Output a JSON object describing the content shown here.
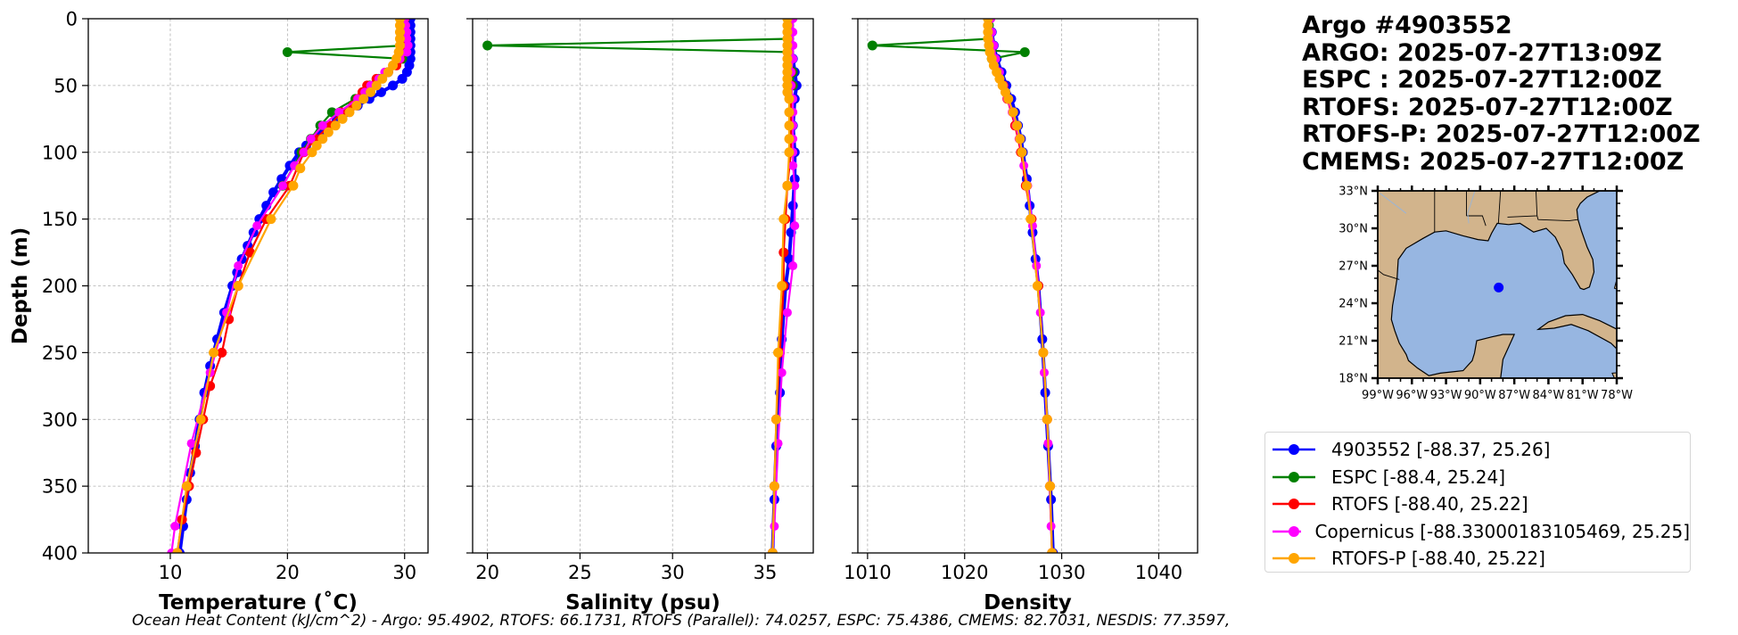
{
  "colors": {
    "argo": "#0000ff",
    "espc": "#008000",
    "rtofs": "#ff0000",
    "copernicus": "#ff00ff",
    "rtofs_p": "#ffa500",
    "land": "#d2b48c",
    "ocean": "#97b6e1",
    "grid": "#b0b0b0"
  },
  "title_lines": [
    "Argo #4903552",
    "ARGO: 2025-07-27T13:09Z",
    "ESPC : 2025-07-27T12:00Z",
    "RTOFS: 2025-07-27T12:00Z",
    "RTOFS-P: 2025-07-27T12:00Z",
    "CMEMS: 2025-07-27T12:00Z"
  ],
  "legend": [
    {
      "key": "argo",
      "label": "4903552 [-88.37, 25.26]"
    },
    {
      "key": "espc",
      "label": "ESPC [-88.4, 25.24]"
    },
    {
      "key": "rtofs",
      "label": "RTOFS [-88.40, 25.22]"
    },
    {
      "key": "copernicus",
      "label": "Copernicus [-88.33000183105469, 25.25]"
    },
    {
      "key": "rtofs_p",
      "label": "RTOFS-P [-88.40, 25.22]"
    }
  ],
  "footer_text": "Ocean Heat Content (kJ/cm^2) - Argo: 95.4902,  RTOFS: 66.1731,  RTOFS (Parallel): 74.0257,  ESPC: 75.4386,  CMEMS: 82.7031,  NESDIS: 77.3597,",
  "map": {
    "lat_ticks": [
      "33°N",
      "30°N",
      "27°N",
      "24°N",
      "21°N",
      "18°N"
    ],
    "lat_values": [
      33,
      30,
      27,
      24,
      21,
      18
    ],
    "lon_ticks": [
      "99°W",
      "96°W",
      "93°W",
      "90°W",
      "87°W",
      "84°W",
      "81°W",
      "78°W"
    ],
    "lon_values": [
      -99,
      -96,
      -93,
      -90,
      -87,
      -84,
      -81,
      -78
    ],
    "lon_range": [
      -99,
      -78
    ],
    "lat_range": [
      18,
      33
    ],
    "float_position": [
      -88.37,
      25.26
    ]
  },
  "chart_data": [
    {
      "type": "line",
      "title": "",
      "xlabel": "Temperature (˚C)",
      "ylabel": "Depth (m)",
      "xlim": [
        3,
        32
      ],
      "ylim": [
        400,
        0
      ],
      "xticks": [
        10,
        20,
        30
      ],
      "yticks": [
        0,
        50,
        100,
        150,
        200,
        250,
        300,
        350,
        400
      ],
      "series": [
        {
          "name": "4903552",
          "key": "argo",
          "depth": [
            0,
            5,
            10,
            15,
            20,
            25,
            30,
            35,
            40,
            45,
            50,
            55,
            60,
            65,
            70,
            75,
            80,
            85,
            90,
            95,
            100,
            110,
            120,
            130,
            140,
            150,
            160,
            170,
            180,
            190,
            200,
            220,
            240,
            260,
            280,
            300,
            320,
            340,
            360,
            380,
            400
          ],
          "values": [
            30.5,
            30.5,
            30.5,
            30.5,
            30.5,
            30.5,
            30.5,
            30.4,
            30.2,
            29.8,
            29.0,
            28.0,
            27.0,
            26.0,
            25.0,
            24.2,
            23.5,
            22.8,
            22.2,
            21.6,
            21.0,
            20.2,
            19.5,
            18.8,
            18.2,
            17.6,
            17.1,
            16.6,
            16.1,
            15.7,
            15.3,
            14.6,
            14.0,
            13.4,
            12.9,
            12.5,
            12.1,
            11.7,
            11.4,
            11.1,
            10.8
          ]
        },
        {
          "name": "ESPC",
          "key": "espc",
          "depth": [
            0,
            5,
            10,
            15,
            20,
            25,
            30,
            40,
            45,
            50,
            60,
            70,
            80,
            90,
            100,
            125
          ],
          "values": [
            30.0,
            30.0,
            30.0,
            30.0,
            30.0,
            20.0,
            29.8,
            28.6,
            27.8,
            27.0,
            25.8,
            23.8,
            22.8,
            22.0,
            21.2,
            19.6
          ]
        },
        {
          "name": "RTOFS",
          "key": "rtofs",
          "depth": [
            0,
            5,
            10,
            15,
            20,
            25,
            30,
            35,
            40,
            45,
            50,
            55,
            60,
            65,
            70,
            80,
            90,
            100,
            125,
            150,
            175,
            200,
            225,
            250,
            275,
            300,
            325,
            350,
            375,
            400
          ],
          "values": [
            30.0,
            30.0,
            30.0,
            30.0,
            30.0,
            29.8,
            29.6,
            29.3,
            28.6,
            27.6,
            26.8,
            26.4,
            26.0,
            25.6,
            24.6,
            23.6,
            22.4,
            21.4,
            20.2,
            18.2,
            16.8,
            15.8,
            15.0,
            14.4,
            13.4,
            12.8,
            12.2,
            11.6,
            11.0,
            10.6
          ]
        },
        {
          "name": "Copernicus",
          "key": "copernicus",
          "depth": [
            0,
            5,
            10,
            15,
            20,
            25,
            30,
            35,
            40,
            45,
            50,
            55,
            60,
            70,
            80,
            90,
            100,
            110,
            125,
            155,
            185,
            220,
            265,
            318,
            380,
            400
          ],
          "values": [
            30.0,
            30.1,
            30.2,
            30.2,
            30.3,
            30.2,
            29.6,
            29.0,
            28.3,
            27.8,
            27.1,
            26.6,
            26.0,
            24.4,
            23.0,
            22.0,
            21.4,
            20.6,
            19.6,
            17.4,
            15.8,
            14.8,
            13.4,
            11.8,
            10.4,
            10.1
          ]
        },
        {
          "name": "RTOFS-P",
          "key": "rtofs_p",
          "depth": [
            0,
            5,
            10,
            15,
            20,
            25,
            30,
            35,
            40,
            45,
            50,
            55,
            60,
            65,
            70,
            75,
            80,
            85,
            90,
            95,
            100,
            112,
            125,
            150,
            200,
            250,
            300,
            350,
            400
          ],
          "values": [
            29.6,
            29.6,
            29.6,
            29.6,
            29.6,
            29.5,
            29.3,
            29.0,
            28.6,
            28.1,
            27.6,
            27.1,
            26.5,
            25.9,
            25.3,
            24.7,
            24.1,
            23.5,
            23.0,
            22.5,
            22.1,
            21.1,
            20.5,
            18.6,
            15.8,
            13.7,
            12.6,
            11.4,
            10.6
          ]
        }
      ]
    },
    {
      "type": "line",
      "title": "",
      "xlabel": "Salinity (psu)",
      "ylabel": "",
      "xlim": [
        19.2,
        37.6
      ],
      "ylim": [
        400,
        0
      ],
      "xticks": [
        20,
        25,
        30,
        35
      ],
      "series": [
        {
          "name": "4903552",
          "key": "argo",
          "depth": [
            0,
            10,
            20,
            30,
            40,
            50,
            60,
            80,
            100,
            120,
            140,
            160,
            180,
            200,
            240,
            280,
            320,
            360,
            400
          ],
          "values": [
            36.4,
            36.4,
            36.4,
            36.5,
            36.6,
            36.7,
            36.6,
            36.5,
            36.6,
            36.6,
            36.5,
            36.4,
            36.3,
            36.1,
            35.9,
            35.8,
            35.6,
            35.5,
            35.4
          ]
        },
        {
          "name": "ESPC",
          "key": "espc",
          "depth": [
            0,
            5,
            10,
            15,
            20,
            25,
            30,
            40,
            50
          ],
          "values": [
            36.3,
            36.3,
            36.3,
            36.3,
            20.0,
            36.3,
            36.4,
            36.5,
            36.5
          ]
        },
        {
          "name": "RTOFS",
          "key": "rtofs",
          "depth": [
            0,
            10,
            20,
            30,
            40,
            50,
            60,
            80,
            100,
            125,
            150,
            175,
            200,
            250,
            300,
            350,
            400
          ],
          "values": [
            36.4,
            36.4,
            36.4,
            36.4,
            36.4,
            36.4,
            36.4,
            36.4,
            36.4,
            36.2,
            36.1,
            36.0,
            36.0,
            35.8,
            35.6,
            35.5,
            35.4
          ]
        },
        {
          "name": "Copernicus",
          "key": "copernicus",
          "depth": [
            0,
            10,
            20,
            30,
            40,
            50,
            60,
            70,
            80,
            90,
            100,
            110,
            125,
            155,
            185,
            220,
            265,
            318,
            380,
            400
          ],
          "values": [
            36.5,
            36.5,
            36.5,
            36.5,
            36.4,
            36.4,
            36.5,
            36.5,
            36.5,
            36.5,
            36.5,
            36.5,
            36.6,
            36.6,
            36.5,
            36.2,
            35.9,
            35.7,
            35.5,
            35.4
          ]
        },
        {
          "name": "RTOFS-P",
          "key": "rtofs_p",
          "depth": [
            0,
            5,
            10,
            15,
            20,
            25,
            30,
            35,
            40,
            45,
            50,
            55,
            60,
            70,
            80,
            90,
            100,
            125,
            150,
            200,
            250,
            300,
            350,
            400
          ],
          "values": [
            36.2,
            36.2,
            36.2,
            36.2,
            36.2,
            36.2,
            36.2,
            36.2,
            36.2,
            36.2,
            36.2,
            36.2,
            36.3,
            36.3,
            36.3,
            36.3,
            36.3,
            36.2,
            36.0,
            35.9,
            35.7,
            35.6,
            35.5,
            35.4
          ]
        }
      ]
    },
    {
      "type": "line",
      "title": "",
      "xlabel": "Density",
      "ylabel": "",
      "xlim": [
        1009,
        1044
      ],
      "ylim": [
        400,
        0
      ],
      "xticks": [
        1010,
        1020,
        1030,
        1040
      ],
      "series": [
        {
          "name": "4903552",
          "key": "argo",
          "depth": [
            0,
            10,
            20,
            30,
            40,
            50,
            60,
            70,
            80,
            90,
            100,
            120,
            140,
            160,
            180,
            200,
            240,
            280,
            320,
            360,
            400
          ],
          "values": [
            1022.6,
            1022.8,
            1023.0,
            1023.3,
            1023.8,
            1024.3,
            1024.8,
            1025.2,
            1025.5,
            1025.8,
            1026.0,
            1026.4,
            1026.7,
            1027.0,
            1027.3,
            1027.6,
            1028.0,
            1028.3,
            1028.6,
            1028.9,
            1029.1
          ]
        },
        {
          "name": "ESPC",
          "key": "espc",
          "depth": [
            0,
            5,
            10,
            15,
            20,
            25,
            30
          ],
          "values": [
            1022.5,
            1022.5,
            1022.5,
            1022.5,
            1010.5,
            1026.2,
            1022.8
          ]
        },
        {
          "name": "RTOFS",
          "key": "rtofs",
          "depth": [
            0,
            10,
            20,
            30,
            40,
            50,
            60,
            80,
            100,
            125,
            150,
            200,
            250,
            300,
            350,
            400
          ],
          "values": [
            1022.5,
            1022.6,
            1022.8,
            1023.1,
            1023.5,
            1024.0,
            1024.4,
            1025.2,
            1025.8,
            1026.3,
            1026.9,
            1027.6,
            1028.1,
            1028.5,
            1028.8,
            1029.0
          ]
        },
        {
          "name": "Copernicus",
          "key": "copernicus",
          "depth": [
            0,
            10,
            20,
            30,
            40,
            50,
            60,
            70,
            80,
            90,
            100,
            110,
            125,
            155,
            185,
            220,
            265,
            318,
            380,
            400
          ],
          "values": [
            1022.7,
            1022.8,
            1023.0,
            1023.2,
            1023.6,
            1024.0,
            1024.4,
            1024.9,
            1025.3,
            1025.6,
            1025.9,
            1026.1,
            1026.5,
            1027.0,
            1027.4,
            1027.8,
            1028.2,
            1028.6,
            1028.9,
            1029.0
          ]
        },
        {
          "name": "RTOFS-P",
          "key": "rtofs_p",
          "depth": [
            0,
            5,
            10,
            15,
            20,
            25,
            30,
            35,
            40,
            45,
            50,
            55,
            60,
            70,
            80,
            90,
            100,
            125,
            150,
            200,
            250,
            300,
            350,
            400
          ],
          "values": [
            1022.4,
            1022.4,
            1022.4,
            1022.4,
            1022.5,
            1022.6,
            1022.8,
            1023.0,
            1023.3,
            1023.6,
            1023.9,
            1024.2,
            1024.5,
            1025.0,
            1025.4,
            1025.7,
            1025.9,
            1026.4,
            1026.8,
            1027.5,
            1028.1,
            1028.5,
            1028.8,
            1029.0
          ]
        }
      ]
    }
  ]
}
